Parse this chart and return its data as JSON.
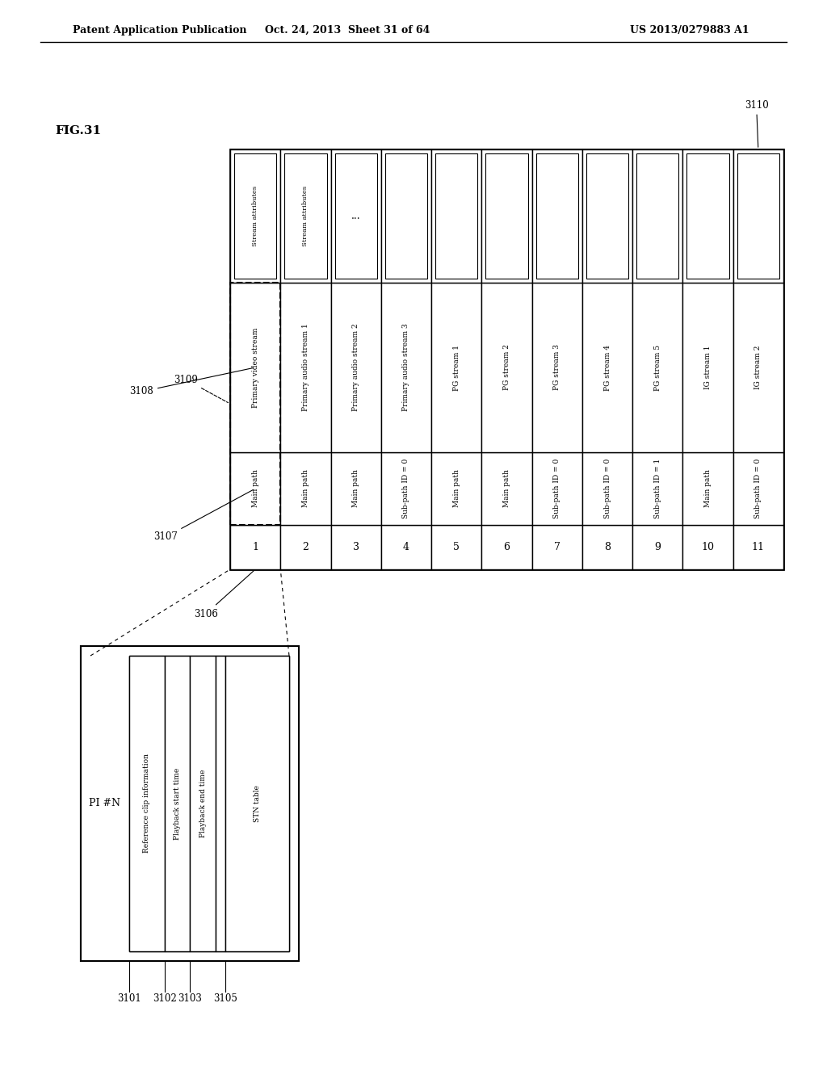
{
  "header_left": "Patent Application Publication",
  "header_mid": "Oct. 24, 2013  Sheet 31 of 64",
  "header_right": "US 2013/0279883 A1",
  "fig_label": "FIG.31",
  "big_table": {
    "rows": [
      {
        "num": "1",
        "path": "Main path",
        "stream": "Primary video stream",
        "attr": "Stream attributes"
      },
      {
        "num": "2",
        "path": "Main path",
        "stream": "Primary audio stream 1",
        "attr": "Stream attributes"
      },
      {
        "num": "3",
        "path": "Main path",
        "stream": "Primary audio stream 2",
        "attr": "..."
      },
      {
        "num": "4",
        "path": "Sub-path ID = 0",
        "stream": "Primary audio stream 3",
        "attr": ""
      },
      {
        "num": "5",
        "path": "Main path",
        "stream": "PG stream 1",
        "attr": ""
      },
      {
        "num": "6",
        "path": "Main path",
        "stream": "PG stream 2",
        "attr": ""
      },
      {
        "num": "7",
        "path": "Sub-path ID = 0",
        "stream": "PG stream 3",
        "attr": ""
      },
      {
        "num": "8",
        "path": "Sub-path ID = 0",
        "stream": "PG stream 4",
        "attr": ""
      },
      {
        "num": "9",
        "path": "Sub-path ID = 1",
        "stream": "PG stream 5",
        "attr": ""
      },
      {
        "num": "10",
        "path": "Main path",
        "stream": "IG stream 1",
        "attr": ""
      },
      {
        "num": "11",
        "path": "Sub-path ID = 0",
        "stream": "IG stream 2",
        "attr": ""
      }
    ]
  },
  "small_table": {
    "rows": [
      "PI #N",
      "Reference clip information",
      "Playback start time",
      "Playback end time",
      "",
      "STN table"
    ]
  }
}
